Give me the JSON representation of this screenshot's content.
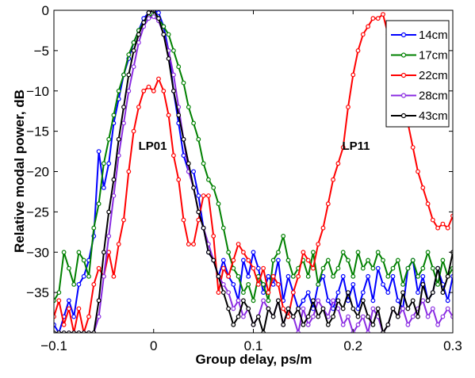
{
  "chart_data": {
    "type": "line",
    "title": "",
    "xlabel": "Group delay, ps/m",
    "ylabel": "Relative modal power, dB",
    "xlim": [
      -0.1,
      0.3
    ],
    "ylim": [
      -40,
      0
    ],
    "xticks": [
      -0.1,
      0,
      0.1,
      0.2,
      0.3
    ],
    "xtick_labels": [
      "−0.1",
      "0",
      "0.1",
      "0.2",
      "0.3"
    ],
    "yticks": [
      0,
      -5,
      -10,
      -15,
      -20,
      -25,
      -30,
      -35
    ],
    "ytick_labels": [
      "0",
      "−5",
      "−10",
      "−15",
      "−20",
      "−25",
      "−30",
      "−35"
    ],
    "grid": false,
    "legend_position": "top-right",
    "markers": "open-circle",
    "annotations": [
      {
        "text": "LP01",
        "x": -0.001,
        "y": -16.8
      },
      {
        "text": "LP11",
        "x": 0.203,
        "y": -16.8
      }
    ],
    "series": [
      {
        "name": "14cm",
        "color": "#0000ff",
        "x": [
          -0.1,
          -0.095,
          -0.09,
          -0.085,
          -0.08,
          -0.075,
          -0.07,
          -0.065,
          -0.06,
          -0.055,
          -0.05,
          -0.045,
          -0.04,
          -0.035,
          -0.03,
          -0.025,
          -0.02,
          -0.015,
          -0.01,
          -0.005,
          0.0,
          0.005,
          0.01,
          0.015,
          0.02,
          0.025,
          0.03,
          0.035,
          0.04,
          0.045,
          0.05,
          0.055,
          0.06,
          0.065,
          0.07,
          0.075,
          0.08,
          0.085,
          0.09,
          0.095,
          0.1,
          0.105,
          0.11,
          0.115,
          0.12,
          0.125,
          0.13,
          0.135,
          0.14,
          0.145,
          0.15,
          0.155,
          0.16,
          0.165,
          0.17,
          0.175,
          0.18,
          0.185,
          0.19,
          0.195,
          0.2,
          0.205,
          0.21,
          0.215,
          0.22,
          0.225,
          0.23,
          0.235,
          0.24,
          0.245,
          0.25,
          0.255,
          0.26,
          0.265,
          0.27,
          0.275,
          0.28,
          0.285,
          0.29,
          0.295,
          0.3
        ],
        "y": [
          -39,
          -40,
          -38,
          -36,
          -38,
          -34,
          -33,
          -31,
          -28,
          -17.5,
          -22,
          -19,
          -14,
          -11,
          -8,
          -6,
          -4,
          -2.5,
          -1,
          -0.3,
          0,
          -0.3,
          -2,
          -5,
          -10,
          -14,
          -18,
          -20,
          -20,
          -23,
          -27,
          -30,
          -31,
          -33,
          -31,
          -33,
          -34,
          -36,
          -31,
          -33,
          -30,
          -32,
          -35,
          -33,
          -34,
          -31,
          -36,
          -33,
          -35,
          -37,
          -36,
          -35,
          -37,
          -34,
          -33,
          -36,
          -37,
          -35,
          -33,
          -36,
          -34,
          -37,
          -35,
          -33,
          -36,
          -32,
          -34,
          -35,
          -33,
          -36,
          -37,
          -32,
          -31,
          -35,
          -33,
          -36,
          -35,
          -32,
          -34,
          -36,
          -33
        ]
      },
      {
        "name": "17cm",
        "color": "#008000",
        "x": [
          -0.1,
          -0.095,
          -0.09,
          -0.085,
          -0.08,
          -0.075,
          -0.07,
          -0.065,
          -0.06,
          -0.055,
          -0.05,
          -0.045,
          -0.04,
          -0.035,
          -0.03,
          -0.025,
          -0.02,
          -0.015,
          -0.01,
          -0.005,
          0.0,
          0.005,
          0.01,
          0.015,
          0.02,
          0.025,
          0.03,
          0.035,
          0.04,
          0.045,
          0.05,
          0.055,
          0.06,
          0.065,
          0.07,
          0.075,
          0.08,
          0.085,
          0.09,
          0.095,
          0.1,
          0.105,
          0.11,
          0.115,
          0.12,
          0.125,
          0.13,
          0.135,
          0.14,
          0.145,
          0.15,
          0.155,
          0.16,
          0.165,
          0.17,
          0.175,
          0.18,
          0.185,
          0.19,
          0.195,
          0.2,
          0.205,
          0.21,
          0.215,
          0.22,
          0.225,
          0.23,
          0.235,
          0.24,
          0.245,
          0.25,
          0.255,
          0.26,
          0.265,
          0.27,
          0.275,
          0.28,
          0.285,
          0.29,
          0.295,
          0.3
        ],
        "y": [
          -36,
          -35,
          -30,
          -32,
          -34,
          -30,
          -31,
          -33,
          -27,
          -24,
          -19,
          -16,
          -13,
          -10,
          -8,
          -5.5,
          -4,
          -2.5,
          -1.5,
          -0.8,
          -0.5,
          -1,
          -2,
          -3,
          -5,
          -7,
          -9,
          -12,
          -14,
          -16,
          -19,
          -21,
          -22,
          -24,
          -27,
          -30,
          -32,
          -33,
          -35,
          -34,
          -36,
          -33,
          -34,
          -36,
          -31,
          -30,
          -28,
          -31,
          -33,
          -32,
          -31,
          -33,
          -30,
          -34,
          -32,
          -31,
          -33,
          -32,
          -30,
          -31,
          -33,
          -30,
          -32,
          -31,
          -32,
          -30,
          -31,
          -33,
          -32,
          -31,
          -34,
          -32,
          -31,
          -33,
          -32,
          -30,
          -32,
          -34,
          -31,
          -33,
          -32
        ]
      },
      {
        "name": "22cm",
        "color": "#ff0000",
        "x": [
          -0.1,
          -0.095,
          -0.09,
          -0.085,
          -0.08,
          -0.075,
          -0.07,
          -0.065,
          -0.06,
          -0.055,
          -0.05,
          -0.045,
          -0.04,
          -0.035,
          -0.03,
          -0.025,
          -0.02,
          -0.015,
          -0.01,
          -0.005,
          0.0,
          0.005,
          0.01,
          0.015,
          0.02,
          0.025,
          0.03,
          0.035,
          0.04,
          0.045,
          0.05,
          0.055,
          0.06,
          0.065,
          0.07,
          0.075,
          0.08,
          0.085,
          0.09,
          0.095,
          0.1,
          0.105,
          0.11,
          0.115,
          0.12,
          0.125,
          0.13,
          0.135,
          0.14,
          0.145,
          0.15,
          0.155,
          0.16,
          0.165,
          0.17,
          0.175,
          0.18,
          0.185,
          0.19,
          0.195,
          0.2,
          0.205,
          0.21,
          0.215,
          0.22,
          0.225,
          0.23,
          0.235,
          0.24,
          0.245,
          0.25,
          0.255,
          0.26,
          0.265,
          0.27,
          0.275,
          0.28,
          0.285,
          0.29,
          0.295,
          0.3
        ],
        "y": [
          -38,
          -36,
          -39,
          -37,
          -40,
          -37,
          -40,
          -38,
          -34,
          -32,
          -33,
          -30,
          -33,
          -29,
          -26,
          -20,
          -15,
          -12,
          -10,
          -9.5,
          -10,
          -8.5,
          -10,
          -13,
          -18,
          -21,
          -26,
          -29,
          -29,
          -26,
          -23,
          -23,
          -28,
          -35,
          -32,
          -33,
          -31,
          -29,
          -30,
          -31,
          -32,
          -34,
          -32,
          -35,
          -33,
          -34,
          -37,
          -38,
          -35,
          -33,
          -30,
          -31,
          -32,
          -29,
          -27,
          -24,
          -21,
          -19,
          -17,
          -12,
          -8,
          -5,
          -3,
          -2,
          -1,
          -1,
          -0.5,
          -3,
          -5,
          -8,
          -11,
          -14,
          -17,
          -20,
          -22,
          -24,
          -26,
          -27,
          -26.5,
          -27,
          -25.5
        ]
      },
      {
        "name": "28cm",
        "color": "#8a2be2",
        "x": [
          -0.1,
          -0.095,
          -0.09,
          -0.085,
          -0.08,
          -0.075,
          -0.07,
          -0.065,
          -0.06,
          -0.055,
          -0.05,
          -0.045,
          -0.04,
          -0.035,
          -0.03,
          -0.025,
          -0.02,
          -0.015,
          -0.01,
          -0.005,
          0.0,
          0.005,
          0.01,
          0.015,
          0.02,
          0.025,
          0.03,
          0.035,
          0.04,
          0.045,
          0.05,
          0.055,
          0.06,
          0.065,
          0.07,
          0.075,
          0.08,
          0.085,
          0.09,
          0.095,
          0.1,
          0.105,
          0.11,
          0.115,
          0.12,
          0.125,
          0.13,
          0.135,
          0.14,
          0.145,
          0.15,
          0.155,
          0.16,
          0.165,
          0.17,
          0.175,
          0.18,
          0.185,
          0.19,
          0.195,
          0.2,
          0.205,
          0.21,
          0.215,
          0.22,
          0.225,
          0.23,
          0.235,
          0.24,
          0.245,
          0.25,
          0.255,
          0.26,
          0.265,
          0.27,
          0.275,
          0.28,
          0.285,
          0.29,
          0.295,
          0.3
        ],
        "y": [
          -40,
          -40,
          -40,
          -40,
          -40,
          -40,
          -40,
          -40,
          -40,
          -38,
          -33,
          -28,
          -23,
          -18,
          -14,
          -10,
          -7,
          -4,
          -2,
          -1,
          -0.8,
          -1.3,
          -3,
          -5,
          -8,
          -12,
          -16,
          -20,
          -22,
          -25,
          -27,
          -29,
          -31,
          -33,
          -34,
          -35,
          -37,
          -36,
          -38,
          -37,
          -39,
          -38,
          -36,
          -37,
          -38,
          -36,
          -39,
          -37,
          -38,
          -40,
          -37,
          -39,
          -38,
          -36,
          -37,
          -38,
          -36,
          -37,
          -39,
          -38,
          -40,
          -39,
          -38,
          -40,
          -37,
          -38,
          -40,
          -39,
          -37,
          -38,
          -37,
          -39,
          -38,
          -37,
          -36,
          -38,
          -37,
          -39,
          -38,
          -37,
          -38
        ]
      },
      {
        "name": "43cm",
        "color": "#000000",
        "x": [
          -0.1,
          -0.095,
          -0.09,
          -0.085,
          -0.08,
          -0.075,
          -0.07,
          -0.065,
          -0.06,
          -0.055,
          -0.05,
          -0.045,
          -0.04,
          -0.035,
          -0.03,
          -0.025,
          -0.02,
          -0.015,
          -0.01,
          -0.005,
          0.0,
          0.005,
          0.01,
          0.015,
          0.02,
          0.025,
          0.03,
          0.035,
          0.04,
          0.045,
          0.05,
          0.055,
          0.06,
          0.065,
          0.07,
          0.075,
          0.08,
          0.085,
          0.09,
          0.095,
          0.1,
          0.105,
          0.11,
          0.115,
          0.12,
          0.125,
          0.13,
          0.135,
          0.14,
          0.145,
          0.15,
          0.155,
          0.16,
          0.165,
          0.17,
          0.175,
          0.18,
          0.185,
          0.19,
          0.195,
          0.2,
          0.205,
          0.21,
          0.215,
          0.22,
          0.225,
          0.23,
          0.235,
          0.24,
          0.245,
          0.25,
          0.255,
          0.26,
          0.265,
          0.27,
          0.275,
          0.28,
          0.285,
          0.29,
          0.295,
          0.3
        ],
        "y": [
          -40,
          -40,
          -40,
          -40,
          -40,
          -40,
          -40,
          -40,
          -40,
          -36,
          -30,
          -25,
          -21,
          -16,
          -12,
          -8,
          -5,
          -3,
          -1.5,
          -0.3,
          0,
          -1,
          -3,
          -6,
          -10,
          -13,
          -16,
          -19,
          -22,
          -25,
          -27,
          -30,
          -31,
          -33,
          -35,
          -37,
          -39,
          -38,
          -36,
          -37,
          -39,
          -38,
          -40,
          -37,
          -38,
          -36,
          -39,
          -37,
          -38,
          -37,
          -39,
          -38,
          -36,
          -38,
          -37,
          -39,
          -38,
          -36,
          -37,
          -35,
          -37,
          -38,
          -36,
          -38,
          -39,
          -37,
          -40,
          -39,
          -37,
          -38,
          -35,
          -37,
          -36,
          -38,
          -34,
          -36,
          -35,
          -32,
          -35,
          -33,
          -30
        ]
      }
    ]
  }
}
